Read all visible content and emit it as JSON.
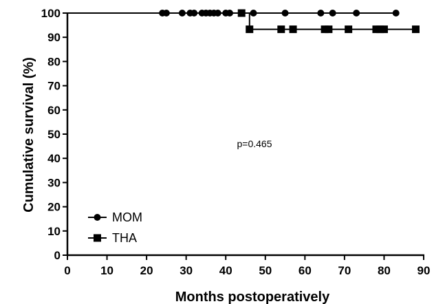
{
  "chart_data": {
    "type": "line",
    "title": "",
    "xlabel": "Months  postoperatively",
    "ylabel": "Cumulative survival (%)",
    "xlim": [
      0,
      90
    ],
    "ylim": [
      0,
      100
    ],
    "x_ticks": [
      "0",
      "10",
      "20",
      "30",
      "40",
      "50",
      "60",
      "70",
      "80",
      "90"
    ],
    "y_ticks": [
      "0",
      "10",
      "20",
      "30",
      "40",
      "50",
      "60",
      "70",
      "80",
      "90",
      "100"
    ],
    "grid": false,
    "legend_position": "bottom-left",
    "annotation": "p=0.465",
    "series": [
      {
        "name": "MOM",
        "marker": "circle",
        "color": "#000000",
        "step_x": [
          0,
          83
        ],
        "step_y": [
          100,
          100
        ],
        "censored": [
          {
            "x": 24,
            "y": 100
          },
          {
            "x": 25,
            "y": 100
          },
          {
            "x": 29,
            "y": 100
          },
          {
            "x": 31,
            "y": 100
          },
          {
            "x": 32,
            "y": 100
          },
          {
            "x": 34,
            "y": 100
          },
          {
            "x": 35,
            "y": 100
          },
          {
            "x": 36,
            "y": 100
          },
          {
            "x": 37,
            "y": 100
          },
          {
            "x": 38,
            "y": 100
          },
          {
            "x": 40,
            "y": 100
          },
          {
            "x": 41,
            "y": 100
          },
          {
            "x": 47,
            "y": 100
          },
          {
            "x": 55,
            "y": 100
          },
          {
            "x": 64,
            "y": 100
          },
          {
            "x": 67,
            "y": 100
          },
          {
            "x": 73,
            "y": 100
          },
          {
            "x": 83,
            "y": 100
          }
        ]
      },
      {
        "name": "THA",
        "marker": "square",
        "color": "#000000",
        "step_x": [
          0,
          46,
          46,
          88
        ],
        "step_y": [
          100,
          100,
          93.3,
          93.3
        ],
        "censored": [
          {
            "x": 44,
            "y": 100
          },
          {
            "x": 46,
            "y": 93.3
          },
          {
            "x": 54,
            "y": 93.3
          },
          {
            "x": 57,
            "y": 93.3
          },
          {
            "x": 65,
            "y": 93.3
          },
          {
            "x": 66,
            "y": 93.3
          },
          {
            "x": 71,
            "y": 93.3
          },
          {
            "x": 78,
            "y": 93.3
          },
          {
            "x": 79,
            "y": 93.3
          },
          {
            "x": 80,
            "y": 93.3
          },
          {
            "x": 88,
            "y": 93.3
          }
        ]
      }
    ]
  }
}
